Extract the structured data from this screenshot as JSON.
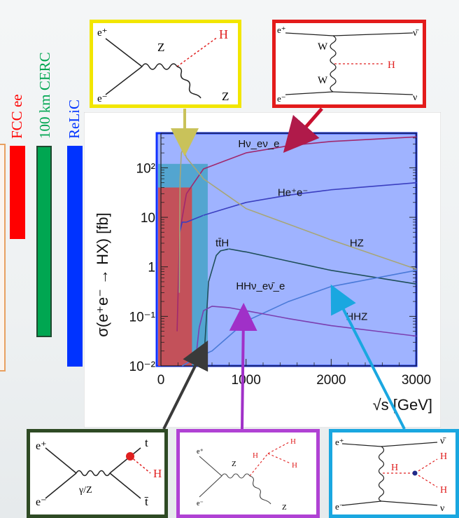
{
  "colliders": [
    {
      "label": "FCC ee",
      "color": "#ff0000"
    },
    {
      "label": "100 km CERC",
      "color": "#00a651"
    },
    {
      "label": "ReLiC",
      "color": "#0033ff"
    }
  ],
  "chart_data": {
    "type": "line",
    "xlabel": "√s [GeV]",
    "ylabel": "σ(e⁺e⁻ → HX) [fb]",
    "xlim": [
      0,
      3000
    ],
    "ylim": [
      0.01,
      500
    ],
    "yscale": "log",
    "x_ticks": [
      "0",
      "1000",
      "2000",
      "3000"
    ],
    "y_ticks": [
      "10²",
      "10",
      "1",
      "10⁻¹",
      "10⁻²"
    ],
    "series": [
      {
        "name": "Hν_eν̄_e",
        "color": "#a0286e",
        "points": [
          [
            190,
            0.05
          ],
          [
            220,
            5
          ],
          [
            300,
            30
          ],
          [
            500,
            95
          ],
          [
            1000,
            200
          ],
          [
            1500,
            280
          ],
          [
            2000,
            340
          ],
          [
            3000,
            420
          ]
        ]
      },
      {
        "name": "He⁺e⁻",
        "color": "#3b3fc0",
        "points": [
          [
            220,
            5
          ],
          [
            250,
            8
          ],
          [
            300,
            8
          ],
          [
            500,
            11
          ],
          [
            1000,
            20
          ],
          [
            1500,
            28
          ],
          [
            2000,
            36
          ],
          [
            3000,
            50
          ]
        ]
      },
      {
        "name": "HZ",
        "color": "#a7a678",
        "points": [
          [
            216,
            0.3
          ],
          [
            225,
            60
          ],
          [
            240,
            200
          ],
          [
            260,
            240
          ],
          [
            300,
            160
          ],
          [
            500,
            60
          ],
          [
            1000,
            15
          ],
          [
            2000,
            3.5
          ],
          [
            3000,
            0.9
          ]
        ]
      },
      {
        "name": "tt̄H",
        "color": "#1f4f5a",
        "points": [
          [
            500,
            0.01
          ],
          [
            560,
            0.5
          ],
          [
            650,
            1.7
          ],
          [
            700,
            2.1
          ],
          [
            800,
            2.3
          ],
          [
            1000,
            2.0
          ],
          [
            1500,
            1.3
          ],
          [
            2000,
            0.85
          ],
          [
            3000,
            0.45
          ]
        ]
      },
      {
        "name": "HHν_eν̄_e",
        "color": "#4a7ad8",
        "points": [
          [
            250,
            0.01
          ],
          [
            400,
            0.014
          ],
          [
            600,
            0.02
          ],
          [
            1000,
            0.08
          ],
          [
            1500,
            0.2
          ],
          [
            2000,
            0.4
          ],
          [
            3000,
            0.85
          ]
        ]
      },
      {
        "name": "HHZ",
        "color": "#7b3fb0",
        "points": [
          [
            400,
            0.01
          ],
          [
            450,
            0.06
          ],
          [
            500,
            0.13
          ],
          [
            600,
            0.16
          ],
          [
            800,
            0.15
          ],
          [
            1000,
            0.13
          ],
          [
            1500,
            0.09
          ],
          [
            2000,
            0.065
          ],
          [
            3000,
            0.04
          ]
        ]
      }
    ],
    "labels": {
      "hvv": "Hν_eν_e",
      "hee": "He⁺e⁻",
      "tth": "tt̄H",
      "hz": "HZ",
      "hhvv": "HHν_eν̄_e",
      "hhz": "HHZ"
    },
    "regions": [
      {
        "name": "FCC ee",
        "x": [
          0,
          365
        ],
        "y": [
          0.01,
          40
        ],
        "color": "#e03c3c"
      },
      {
        "name": "100 km CERC",
        "x": [
          0,
          550
        ],
        "y": [
          0.01,
          120
        ],
        "color": "#3aa0c0"
      },
      {
        "name": "ReLiC",
        "x": [
          0,
          3000
        ],
        "y": [
          0.01,
          500
        ],
        "color": "#2a56ff"
      }
    ]
  },
  "diagrams": {
    "hz": {
      "ep": "e⁺",
      "em": "e⁻",
      "z1": "Z",
      "h": "H",
      "z2": "Z",
      "color": "#f2e600"
    },
    "ww": {
      "ep": "e⁺",
      "em": "e⁻",
      "w1": "W",
      "w2": "W",
      "h": "H",
      "nub": "ν̄",
      "nu": "ν",
      "color": "#e31b1b"
    },
    "tth": {
      "ep": "e⁺",
      "em": "e⁻",
      "prop": "γ/Z",
      "t": "t",
      "tb": "t̄",
      "h": "H",
      "color": "#2e4a24"
    },
    "hhz": {
      "ep": "e⁺",
      "em": "e⁻",
      "z1": "Z",
      "h0": "H",
      "h1": "H",
      "h2": "H",
      "z2": "Z",
      "color": "#b042d4"
    },
    "hhvv": {
      "ep": "e⁺",
      "em": "e⁻",
      "h0": "H",
      "h1": "H",
      "h2": "H",
      "nub": "ν̄",
      "nu": "ν",
      "color": "#1aa7e0"
    }
  }
}
